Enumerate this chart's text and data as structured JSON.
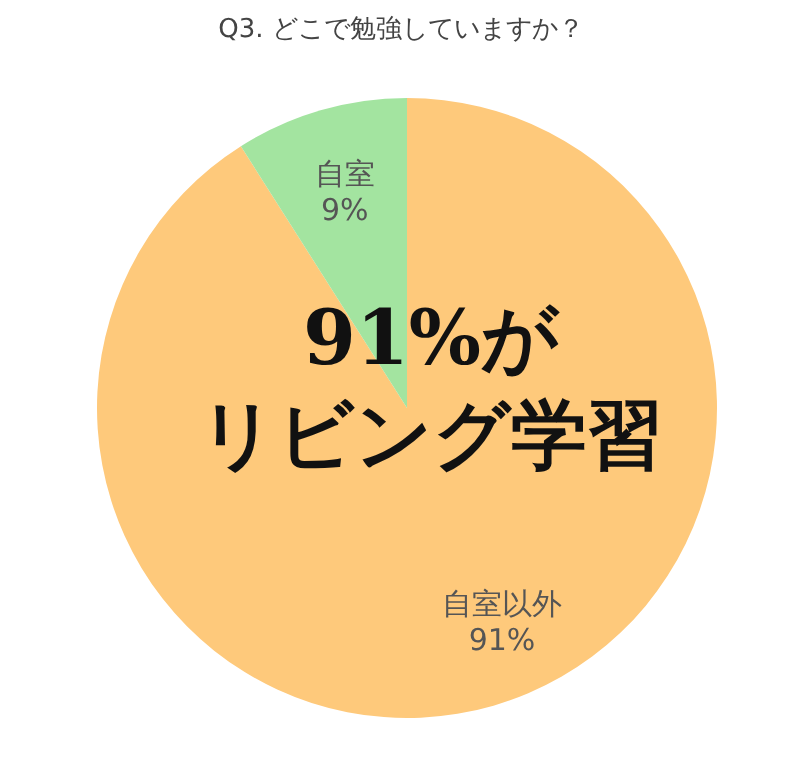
{
  "chart_data": {
    "type": "pie",
    "title": "Q3. どこで勉強していますか？",
    "categories": [
      "自室以外",
      "自室"
    ],
    "values": [
      91,
      9
    ],
    "colors": [
      "#fec97b",
      "#a3e4a0"
    ],
    "value_labels": [
      "91%",
      "9%"
    ],
    "annotations": [
      "91%が",
      "リビング学習"
    ]
  }
}
